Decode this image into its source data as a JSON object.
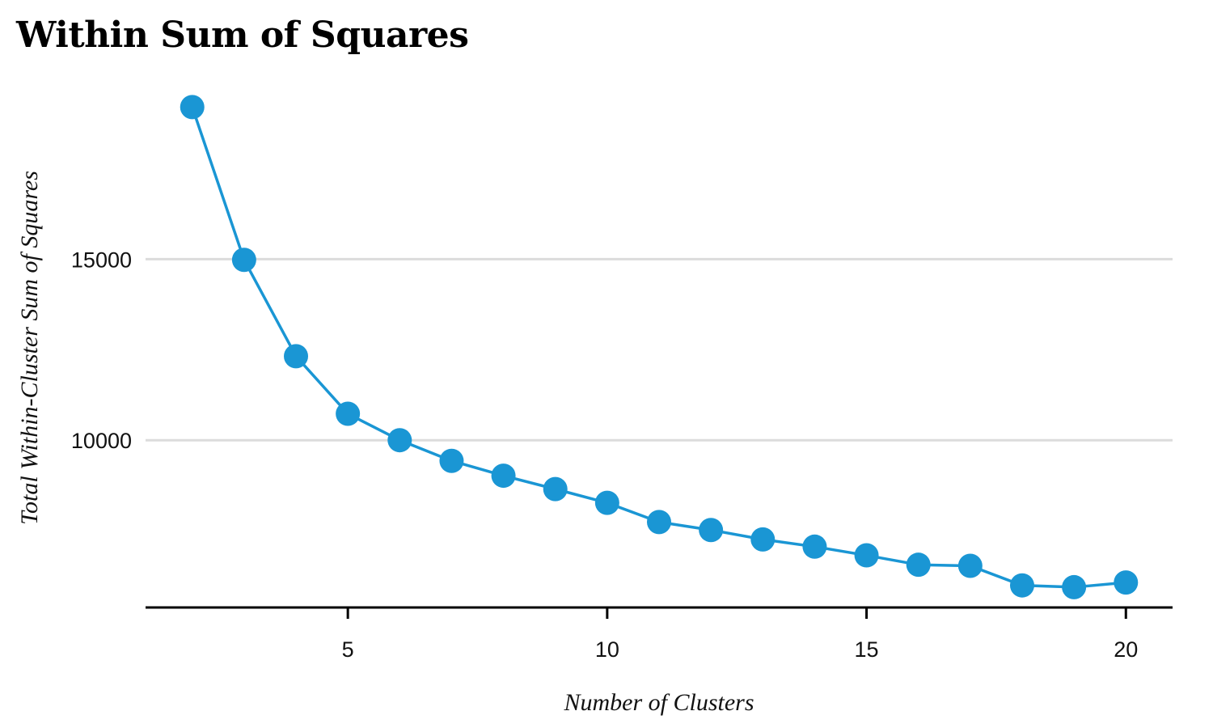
{
  "chart_data": {
    "type": "line",
    "title": "Within Sum of Squares",
    "xlabel": "Number of Clusters",
    "ylabel": "Total Within-Cluster Sum of Squares",
    "x": [
      2,
      3,
      4,
      5,
      6,
      7,
      8,
      9,
      10,
      11,
      12,
      13,
      14,
      15,
      16,
      17,
      18,
      19,
      20
    ],
    "series": [
      {
        "values": [
          19200,
          14980,
          12320,
          10730,
          10000,
          9430,
          9020,
          8650,
          8270,
          7740,
          7520,
          7260,
          7060,
          6820,
          6560,
          6530,
          5990,
          5940,
          6070
        ]
      }
    ],
    "xlim": [
      1.1,
      20.9
    ],
    "ylim": [
      5380,
      19700
    ],
    "xticks": [
      5,
      10,
      15,
      20
    ],
    "yticks": [
      10000,
      15000
    ],
    "xtick_labels": [
      "5",
      "10",
      "15",
      "20"
    ],
    "ytick_labels": [
      "10000",
      "15000"
    ],
    "grid": "horizontal",
    "colors": {
      "series": "#1a96d4",
      "grid": "#dcdcdc",
      "axis": "#000000"
    }
  }
}
